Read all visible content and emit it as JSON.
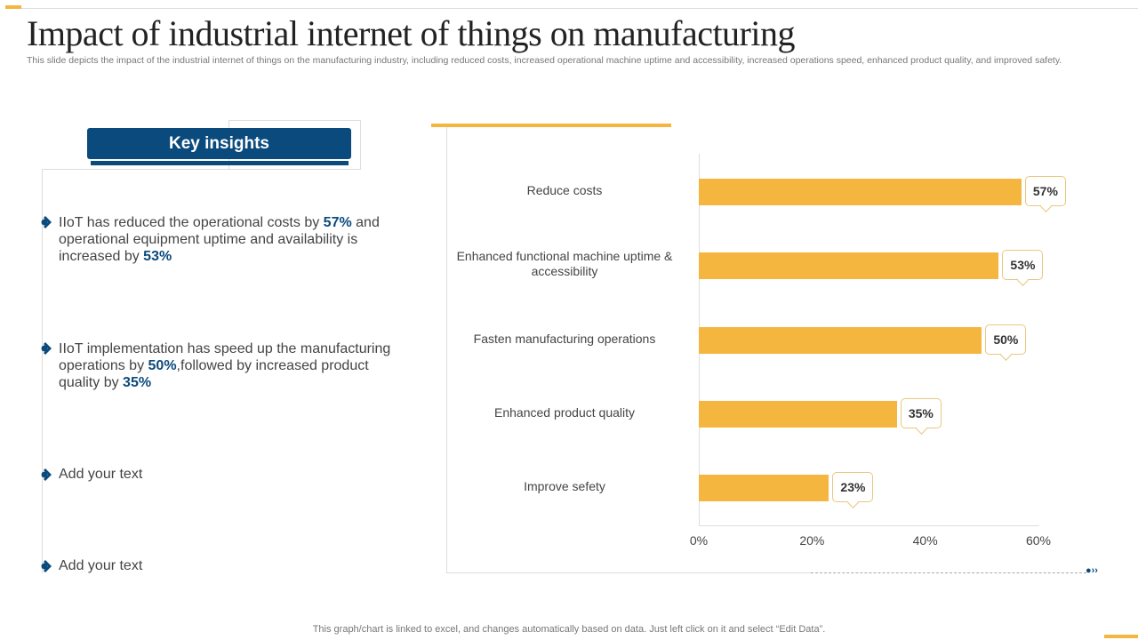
{
  "title": "Impact of industrial internet of things on manufacturing",
  "subtitle": "This slide depicts the impact of the industrial internet of things on the manufacturing industry, including reduced costs, increased operational machine uptime and accessibility, increased operations speed, enhanced product quality, and improved safety.",
  "key_insights": {
    "heading": "Key insights",
    "items": [
      {
        "parts": [
          "IIoT  has reduced the operational costs by ",
          "57%",
          " and operational equipment uptime and availability is increased by ",
          "53%"
        ]
      },
      {
        "parts": [
          "IIoT  implementation has speed up the manufacturing operations by ",
          "50%",
          ",followed by increased product quality by ",
          "35%"
        ]
      },
      {
        "parts": [
          "Add your text"
        ]
      },
      {
        "parts": [
          "Add your text"
        ]
      }
    ]
  },
  "chart_data": {
    "type": "bar",
    "orientation": "horizontal",
    "categories": [
      "Reduce costs",
      "Enhanced functional machine uptime & accessibility",
      "Fasten manufacturing operations",
      "Enhanced product quality",
      "Improve sefety"
    ],
    "values": [
      57,
      53,
      50,
      35,
      23
    ],
    "data_labels": [
      "57%",
      "53%",
      "50%",
      "35%",
      "23%"
    ],
    "xlim": [
      0,
      60
    ],
    "x_ticks": [
      "0%",
      "20%",
      "40%",
      "60%"
    ],
    "grid": false,
    "bar_color": "#f4b63f"
  },
  "footer": "This graph/chart is linked to excel,  and changes automatically based on data. Just left click on it and select “Edit Data”.",
  "colors": {
    "accent": "#f4b63f",
    "primary": "#0b4a7c"
  }
}
